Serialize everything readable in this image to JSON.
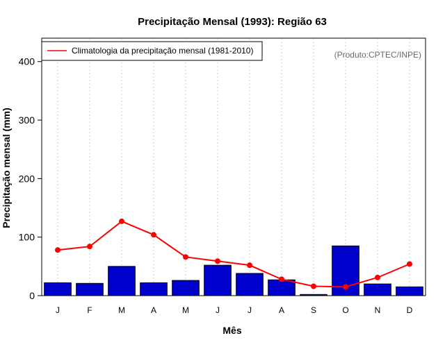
{
  "chart_data": {
    "type": "bar",
    "title": "Precipitação Mensal (1993): Região 63",
    "xlabel": "Mês",
    "ylabel": "Precipitação mensal (mm)",
    "categories": [
      "J",
      "F",
      "M",
      "A",
      "M",
      "J",
      "J",
      "A",
      "S",
      "O",
      "N",
      "D"
    ],
    "ylim": [
      0,
      440
    ],
    "yticks": [
      0,
      100,
      200,
      300,
      400
    ],
    "grid": "vertical dotted",
    "series": [
      {
        "name": "Precipitação mensal 1993",
        "type": "bar",
        "color": "#0000cc",
        "values": [
          22,
          21,
          50,
          22,
          26,
          52,
          38,
          27,
          2,
          85,
          20,
          15
        ]
      },
      {
        "name": "Climatologia da precipitação mensal (1981-2010)",
        "type": "line",
        "color": "#ff0000",
        "values": [
          78,
          84,
          127,
          104,
          66,
          59,
          52,
          28,
          16,
          15,
          31,
          54
        ]
      }
    ],
    "legend": {
      "position": "top-left",
      "label": "Climatologia da precipitação mensal (1981-2010)"
    },
    "credit": "(Produto:CPTEC/INPE)"
  }
}
